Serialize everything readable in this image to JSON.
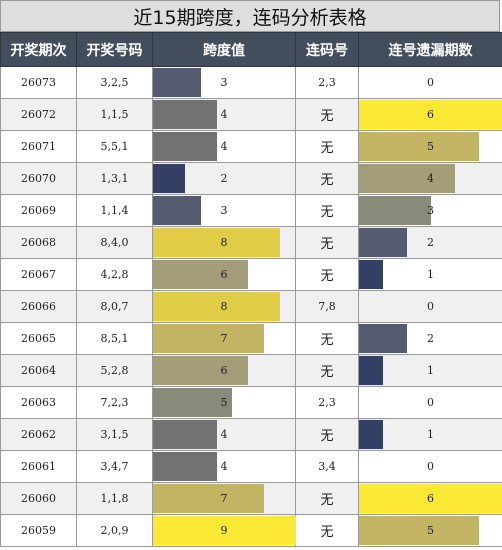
{
  "title": "近15期跨度，连码分析表格",
  "headers": [
    "开奖期次",
    "开奖号码",
    "跨度值",
    "连码号",
    "连号遗漏期数"
  ],
  "colors": {
    "v1": "#2f3f6b",
    "v2": "#343f65",
    "v3": "#545b6e",
    "v4": "#727272",
    "v5": "#8a8a7a",
    "v6": "#a29d78",
    "v7": "#c3b463",
    "v8": "#e1cc48",
    "v9": "#fbe936"
  },
  "rows": [
    {
      "issue": "26073",
      "numbers": "3,2,5",
      "span": "3",
      "consecutive": "2,3",
      "miss": "0"
    },
    {
      "issue": "26072",
      "numbers": "1,1,5",
      "span": "4",
      "consecutive": "无",
      "miss": "6"
    },
    {
      "issue": "26071",
      "numbers": "5,5,1",
      "span": "4",
      "consecutive": "无",
      "miss": "5"
    },
    {
      "issue": "26070",
      "numbers": "1,3,1",
      "span": "2",
      "consecutive": "无",
      "miss": "4"
    },
    {
      "issue": "26069",
      "numbers": "1,1,4",
      "span": "3",
      "consecutive": "无",
      "miss": "3"
    },
    {
      "issue": "26068",
      "numbers": "8,4,0",
      "span": "8",
      "consecutive": "无",
      "miss": "2"
    },
    {
      "issue": "26067",
      "numbers": "4,2,8",
      "span": "6",
      "consecutive": "无",
      "miss": "1"
    },
    {
      "issue": "26066",
      "numbers": "8,0,7",
      "span": "8",
      "consecutive": "7,8",
      "miss": "0"
    },
    {
      "issue": "26065",
      "numbers": "8,5,1",
      "span": "7",
      "consecutive": "无",
      "miss": "2"
    },
    {
      "issue": "26064",
      "numbers": "5,2,8",
      "span": "6",
      "consecutive": "无",
      "miss": "1"
    },
    {
      "issue": "26063",
      "numbers": "7,2,3",
      "span": "5",
      "consecutive": "2,3",
      "miss": "0"
    },
    {
      "issue": "26062",
      "numbers": "3,1,5",
      "span": "4",
      "consecutive": "无",
      "miss": "1"
    },
    {
      "issue": "26061",
      "numbers": "3,4,7",
      "span": "4",
      "consecutive": "3,4",
      "miss": "0"
    },
    {
      "issue": "26060",
      "numbers": "1,1,8",
      "span": "7",
      "consecutive": "无",
      "miss": "6"
    },
    {
      "issue": "26059",
      "numbers": "2,0,9",
      "span": "9",
      "consecutive": "无",
      "miss": "5"
    }
  ]
}
